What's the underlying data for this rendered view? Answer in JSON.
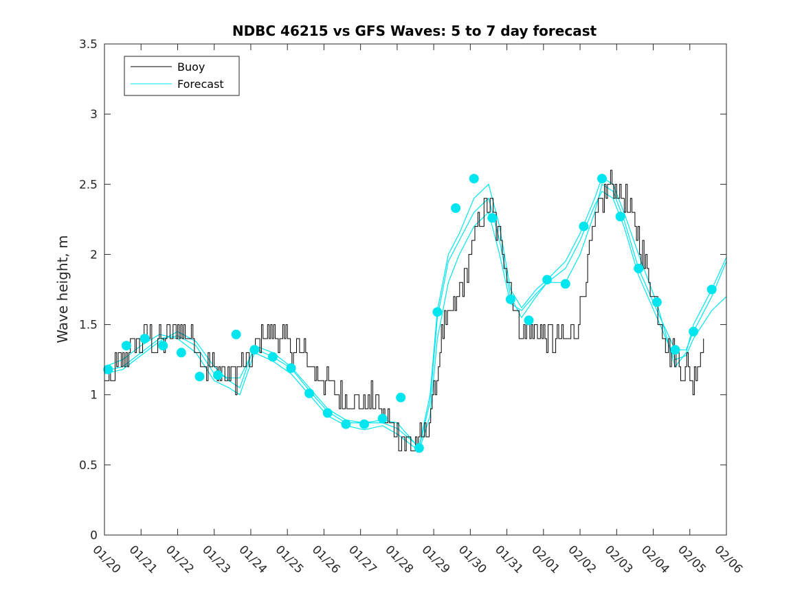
{
  "chart_data": {
    "type": "line",
    "title": "NDBC 46215 vs GFS Waves: 5 to 7 day forecast",
    "xlabel": "",
    "ylabel": "Wave height, m",
    "xlim": [
      0,
      17
    ],
    "ylim": [
      0,
      3.5
    ],
    "x_tick_positions": [
      0,
      1,
      2,
      3,
      4,
      5,
      6,
      7,
      8,
      9,
      10,
      11,
      12,
      13,
      14,
      15,
      16,
      17
    ],
    "x_tick_labels": [
      "01/20",
      "01/21",
      "01/22",
      "01/23",
      "01/24",
      "01/25",
      "01/26",
      "01/27",
      "01/28",
      "01/29",
      "01/30",
      "01/31",
      "02/01",
      "02/02",
      "02/03",
      "02/04",
      "02/05",
      "02/06"
    ],
    "y_ticks": [
      0,
      0.5,
      1,
      1.5,
      2,
      2.5,
      3,
      3.5
    ],
    "y_tick_labels": [
      "0",
      "0.5",
      "1",
      "1.5",
      "2",
      "2.5",
      "3",
      "3.5"
    ],
    "grid": false,
    "legend": {
      "placement": "top-left",
      "entries": [
        {
          "label": "Buoy",
          "color": "#000000"
        },
        {
          "label": "Forecast",
          "color": "#00e5ee"
        }
      ]
    },
    "colors": {
      "buoy": "#000000",
      "forecast": "#00e5ee",
      "markers": "#00e5ee"
    },
    "buoy_keypoints": [
      [
        0,
        1.1
      ],
      [
        0.2,
        1.1
      ],
      [
        0.4,
        1.25
      ],
      [
        0.8,
        1.35
      ],
      [
        1.2,
        1.4
      ],
      [
        1.6,
        1.35
      ],
      [
        2.0,
        1.45
      ],
      [
        2.4,
        1.45
      ],
      [
        2.6,
        1.3
      ],
      [
        2.8,
        1.2
      ],
      [
        3.2,
        1.15
      ],
      [
        3.6,
        1.15
      ],
      [
        4.0,
        1.25
      ],
      [
        4.3,
        1.45
      ],
      [
        4.6,
        1.45
      ],
      [
        5.0,
        1.35
      ],
      [
        5.4,
        1.3
      ],
      [
        5.8,
        1.15
      ],
      [
        6.2,
        1.05
      ],
      [
        6.6,
        0.95
      ],
      [
        7.0,
        0.95
      ],
      [
        7.4,
        0.95
      ],
      [
        7.8,
        0.8
      ],
      [
        8.2,
        0.65
      ],
      [
        8.6,
        0.65
      ],
      [
        8.8,
        0.75
      ],
      [
        9.0,
        1.0
      ],
      [
        9.2,
        1.4
      ],
      [
        9.5,
        1.6
      ],
      [
        9.8,
        1.8
      ],
      [
        10.1,
        2.1
      ],
      [
        10.4,
        2.35
      ],
      [
        10.6,
        2.3
      ],
      [
        10.8,
        2.1
      ],
      [
        11.0,
        1.9
      ],
      [
        11.2,
        1.6
      ],
      [
        11.4,
        1.45
      ],
      [
        11.8,
        1.45
      ],
      [
        12.2,
        1.4
      ],
      [
        12.6,
        1.4
      ],
      [
        12.9,
        1.45
      ],
      [
        13.1,
        1.75
      ],
      [
        13.3,
        2.1
      ],
      [
        13.6,
        2.4
      ],
      [
        13.9,
        2.5
      ],
      [
        14.2,
        2.4
      ],
      [
        14.5,
        2.2
      ],
      [
        14.8,
        1.9
      ],
      [
        15.1,
        1.6
      ],
      [
        15.4,
        1.35
      ],
      [
        15.6,
        1.25
      ],
      [
        15.9,
        1.2
      ],
      [
        16.1,
        1.1
      ],
      [
        16.3,
        1.3
      ],
      [
        16.4,
        1.4
      ]
    ],
    "forecast_series": [
      {
        "name": "forecast-1",
        "points": [
          [
            0,
            1.17
          ],
          [
            0.5,
            1.2
          ],
          [
            1.0,
            1.3
          ],
          [
            1.5,
            1.4
          ],
          [
            2.0,
            1.42
          ],
          [
            2.5,
            1.35
          ],
          [
            3.0,
            1.15
          ],
          [
            3.4,
            1.12
          ],
          [
            3.7,
            1.12
          ],
          [
            4.1,
            1.33
          ],
          [
            4.6,
            1.27
          ],
          [
            5.1,
            1.19
          ],
          [
            5.6,
            1.03
          ],
          [
            6.1,
            0.88
          ],
          [
            6.6,
            0.8
          ],
          [
            7.1,
            0.8
          ],
          [
            7.6,
            0.82
          ],
          [
            8.0,
            0.8
          ],
          [
            8.6,
            0.62
          ],
          [
            8.9,
            0.95
          ],
          [
            9.1,
            1.55
          ],
          [
            9.4,
            1.95
          ],
          [
            9.7,
            2.1
          ],
          [
            10.1,
            2.3
          ],
          [
            10.5,
            2.4
          ],
          [
            10.8,
            2.1
          ],
          [
            11.1,
            1.7
          ],
          [
            11.4,
            1.55
          ],
          [
            11.8,
            1.7
          ],
          [
            12.1,
            1.8
          ],
          [
            12.6,
            1.8
          ],
          [
            13.0,
            2.0
          ],
          [
            13.4,
            2.3
          ],
          [
            13.6,
            2.5
          ],
          [
            13.9,
            2.45
          ],
          [
            14.2,
            2.25
          ],
          [
            14.6,
            1.9
          ],
          [
            15.1,
            1.6
          ],
          [
            15.6,
            1.32
          ],
          [
            15.9,
            1.32
          ],
          [
            16.1,
            1.45
          ],
          [
            16.6,
            1.7
          ],
          [
            17.0,
            1.95
          ]
        ]
      },
      {
        "name": "forecast-2",
        "points": [
          [
            0,
            1.2
          ],
          [
            0.5,
            1.25
          ],
          [
            1.0,
            1.35
          ],
          [
            1.5,
            1.43
          ],
          [
            2.0,
            1.4
          ],
          [
            2.5,
            1.3
          ],
          [
            3.0,
            1.1
          ],
          [
            3.4,
            1.05
          ],
          [
            3.7,
            1.0
          ],
          [
            4.1,
            1.3
          ],
          [
            4.6,
            1.24
          ],
          [
            5.1,
            1.15
          ],
          [
            5.6,
            1.0
          ],
          [
            6.1,
            0.85
          ],
          [
            6.6,
            0.78
          ],
          [
            7.1,
            0.75
          ],
          [
            7.6,
            0.78
          ],
          [
            8.0,
            0.72
          ],
          [
            8.6,
            0.6
          ],
          [
            8.9,
            0.85
          ],
          [
            9.1,
            1.4
          ],
          [
            9.4,
            1.8
          ],
          [
            9.7,
            2.0
          ],
          [
            10.1,
            2.2
          ],
          [
            10.5,
            2.3
          ],
          [
            10.8,
            2.0
          ],
          [
            11.1,
            1.65
          ],
          [
            11.4,
            1.6
          ],
          [
            11.8,
            1.72
          ],
          [
            12.1,
            1.8
          ],
          [
            12.6,
            1.9
          ],
          [
            13.0,
            2.1
          ],
          [
            13.4,
            2.35
          ],
          [
            13.6,
            2.45
          ],
          [
            13.9,
            2.4
          ],
          [
            14.2,
            2.2
          ],
          [
            14.6,
            1.85
          ],
          [
            15.1,
            1.55
          ],
          [
            15.6,
            1.25
          ],
          [
            15.9,
            1.28
          ],
          [
            16.1,
            1.4
          ],
          [
            16.6,
            1.6
          ],
          [
            17.0,
            1.7
          ]
        ]
      },
      {
        "name": "forecast-3",
        "points": [
          [
            0,
            1.15
          ],
          [
            0.5,
            1.18
          ],
          [
            1.0,
            1.28
          ],
          [
            1.5,
            1.38
          ],
          [
            2.0,
            1.45
          ],
          [
            2.5,
            1.38
          ],
          [
            3.0,
            1.2
          ],
          [
            3.4,
            1.1
          ],
          [
            3.7,
            1.05
          ],
          [
            4.1,
            1.35
          ],
          [
            4.6,
            1.3
          ],
          [
            5.1,
            1.2
          ],
          [
            5.6,
            1.05
          ],
          [
            6.1,
            0.9
          ],
          [
            6.6,
            0.82
          ],
          [
            7.1,
            0.8
          ],
          [
            7.6,
            0.8
          ],
          [
            8.0,
            0.76
          ],
          [
            8.6,
            0.63
          ],
          [
            8.9,
            1.0
          ],
          [
            9.1,
            1.6
          ],
          [
            9.4,
            2.0
          ],
          [
            9.7,
            2.15
          ],
          [
            10.1,
            2.4
          ],
          [
            10.5,
            2.5
          ],
          [
            10.8,
            2.2
          ],
          [
            11.1,
            1.75
          ],
          [
            11.4,
            1.62
          ],
          [
            11.8,
            1.75
          ],
          [
            12.1,
            1.82
          ],
          [
            12.6,
            1.95
          ],
          [
            13.0,
            2.15
          ],
          [
            13.4,
            2.4
          ],
          [
            13.6,
            2.55
          ],
          [
            13.9,
            2.5
          ],
          [
            14.2,
            2.3
          ],
          [
            14.6,
            2.0
          ],
          [
            15.1,
            1.65
          ],
          [
            15.6,
            1.2
          ],
          [
            15.9,
            1.3
          ],
          [
            16.1,
            1.5
          ],
          [
            16.6,
            1.75
          ],
          [
            17.0,
            1.98
          ]
        ]
      }
    ],
    "forecast_markers": [
      [
        0.1,
        1.18
      ],
      [
        0.6,
        1.35
      ],
      [
        1.1,
        1.4
      ],
      [
        1.6,
        1.35
      ],
      [
        2.1,
        1.3
      ],
      [
        2.6,
        1.13
      ],
      [
        3.1,
        1.14
      ],
      [
        3.6,
        1.43
      ],
      [
        4.1,
        1.32
      ],
      [
        4.6,
        1.27
      ],
      [
        5.1,
        1.19
      ],
      [
        5.6,
        1.01
      ],
      [
        6.1,
        0.87
      ],
      [
        6.6,
        0.79
      ],
      [
        7.1,
        0.79
      ],
      [
        7.6,
        0.83
      ],
      [
        8.1,
        0.98
      ],
      [
        8.6,
        0.62
      ],
      [
        9.1,
        1.59
      ],
      [
        9.6,
        2.33
      ],
      [
        10.1,
        2.54
      ],
      [
        10.6,
        2.26
      ],
      [
        11.1,
        1.68
      ],
      [
        11.6,
        1.53
      ],
      [
        12.1,
        1.82
      ],
      [
        12.6,
        1.79
      ],
      [
        13.1,
        2.2
      ],
      [
        13.6,
        2.54
      ],
      [
        14.1,
        2.27
      ],
      [
        14.6,
        1.9
      ],
      [
        15.1,
        1.66
      ],
      [
        15.6,
        1.32
      ],
      [
        16.1,
        1.45
      ],
      [
        16.6,
        1.75
      ]
    ]
  }
}
